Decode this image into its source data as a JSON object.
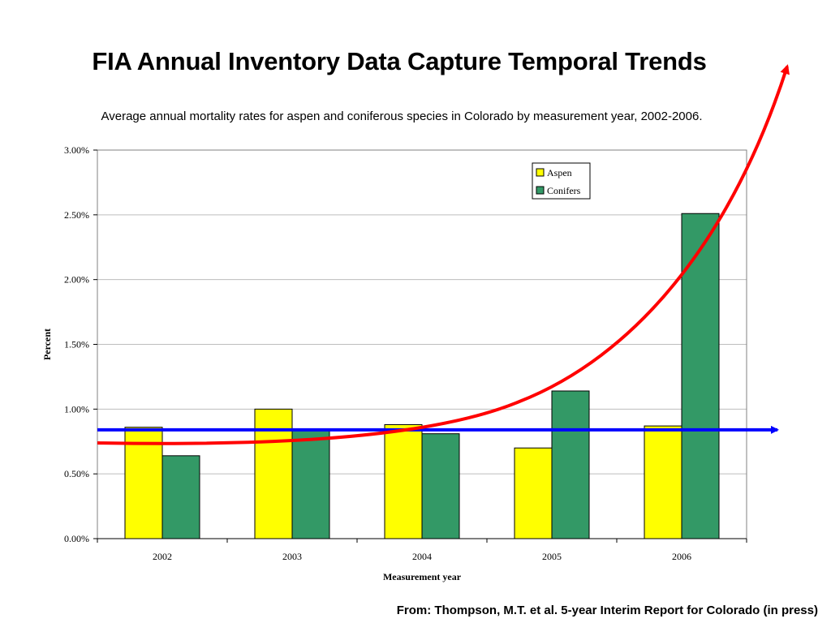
{
  "slide": {
    "title": "FIA Annual Inventory Data Capture Temporal Trends",
    "source": "From: Thompson, M.T. et al.  5-year Interim Report for Colorado (in press)"
  },
  "chart_data": {
    "type": "bar",
    "title": "Average annual mortality rates for aspen and coniferous species in Colorado by measurement year, 2002-2006.",
    "xlabel": "Measurement year",
    "ylabel": "Percent",
    "categories": [
      "2002",
      "2003",
      "2004",
      "2005",
      "2006"
    ],
    "series": [
      {
        "name": "Aspen",
        "values": [
          0.86,
          1.0,
          0.88,
          0.7,
          0.87
        ],
        "color": "#FFFF00"
      },
      {
        "name": "Conifers",
        "values": [
          0.64,
          0.84,
          0.81,
          1.14,
          2.51
        ],
        "color": "#339966"
      }
    ],
    "ylim": [
      0,
      3.0
    ],
    "yticks": [
      "0.00%",
      "0.50%",
      "1.00%",
      "1.50%",
      "2.00%",
      "2.50%",
      "3.00%"
    ],
    "grid": true,
    "legend_position": "top-right",
    "annotations": [
      {
        "kind": "horizontal-arrow",
        "color": "#0000FF",
        "y": 0.84
      },
      {
        "kind": "curved-arrow",
        "color": "#FF0000",
        "trend": "exponential increase"
      }
    ]
  }
}
